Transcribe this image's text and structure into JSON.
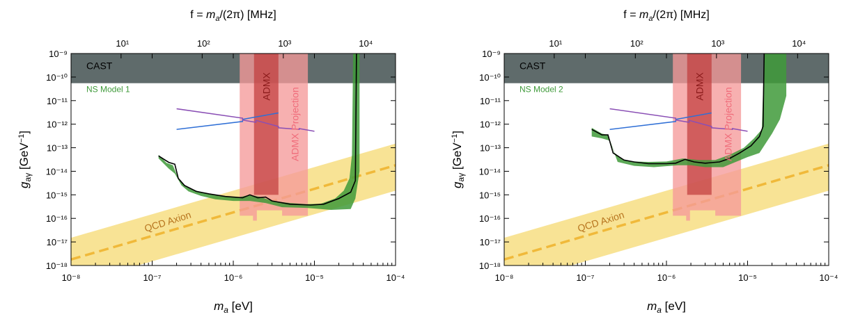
{
  "chart_data": [
    {
      "type": "line",
      "panel_label": "NS Model 1",
      "xscale": "log",
      "yscale": "log",
      "xlabel": "m",
      "xlabel_sub": "a",
      "xlabel_unit": " [eV]",
      "ylabel": "g",
      "ylabel_sub": "aγ",
      "ylabel_unit": " [GeV",
      "ylabel_exp": "−1",
      "ylabel_close": "]",
      "top_xlabel": "f = ",
      "top_xlabel_m": "m",
      "top_xlabel_sub": "a",
      "top_xlabel_rest": "/(2π) [MHz]",
      "xlim": [
        1e-08,
        0.0001
      ],
      "ylim": [
        1e-18,
        1e-09
      ],
      "xtick_exps": [
        -8,
        -7,
        -6,
        -5,
        -4
      ],
      "ytick_exps": [
        -18,
        -17,
        -16,
        -15,
        -14,
        -13,
        -12,
        -11,
        -10,
        -9
      ],
      "top_tick_exps": [
        1,
        2,
        3,
        4
      ],
      "tick_base": "10",
      "regions": {
        "cast": {
          "label": "CAST",
          "x": [
            1e-08,
            0.0001
          ],
          "y": [
            5.5e-11,
            1e-09
          ],
          "color": "#5f6b6b"
        },
        "admx": {
          "label": "ADMX",
          "x": [
            1.8e-06,
            3.6e-06
          ],
          "y": [
            1e-15,
            1e-09
          ],
          "color": "#c03a3a"
        },
        "admx_projection": {
          "label": "ADMX Projection",
          "polygon": [
            [
              1.2e-06,
              1e-09
            ],
            [
              8.3e-06,
              1e-09
            ],
            [
              8.3e-06,
              1.3e-16
            ],
            [
              4e-06,
              1.3e-16
            ],
            [
              4e-06,
              2.2e-16
            ],
            [
              1.95e-06,
              2.2e-16
            ],
            [
              1.95e-06,
              8e-17
            ],
            [
              1.75e-06,
              8e-17
            ],
            [
              1.75e-06,
              1.3e-16
            ],
            [
              1.2e-06,
              1.3e-16
            ]
          ],
          "color": "#f59a9a"
        },
        "qcd": {
          "label": "QCD Axion",
          "band_lower": [
            [
              1e-08,
              1.5e-19
            ],
            [
              0.0001,
              1.5e-15
            ]
          ],
          "band_upper": [
            [
              1e-08,
              1.5e-17
            ],
            [
              0.0001,
              1.5e-13
            ]
          ],
          "center": [
            [
              1e-08,
              1.8e-18
            ],
            [
              0.0001,
              1.8e-14
            ]
          ],
          "color": "#f7e08a",
          "line_color": "#f0b93a"
        }
      },
      "ns_band": [
        [
          1.2e-07,
          5e-14
        ],
        [
          1.5e-07,
          2.3e-14
        ],
        [
          1.8e-07,
          1.8e-14
        ],
        [
          2.1e-07,
          5e-15
        ],
        [
          2.6e-07,
          2.2e-15
        ],
        [
          3.5e-07,
          1.5e-15
        ],
        [
          5e-07,
          1.1e-15
        ],
        [
          8e-07,
          8.5e-16
        ],
        [
          1.2e-06,
          8e-16
        ],
        [
          1.6e-06,
          1e-15
        ],
        [
          2.2e-06,
          8e-16
        ],
        [
          3e-06,
          5.5e-16
        ],
        [
          5e-06,
          4.5e-16
        ],
        [
          8e-06,
          4e-16
        ],
        [
          1.2e-05,
          4.2e-16
        ],
        [
          1.8e-05,
          7e-16
        ],
        [
          2.3e-05,
          1.5e-15
        ],
        [
          2.7e-05,
          5e-15
        ],
        [
          2.9e-05,
          5e-14
        ],
        [
          3e-05,
          1e-09
        ],
        [
          3.6e-05,
          1e-09
        ],
        [
          3.6e-05,
          1e-14
        ],
        [
          3.2e-05,
          7e-16
        ],
        [
          2.8e-05,
          2.5e-16
        ],
        [
          1.6e-05,
          2.3e-16
        ],
        [
          8e-06,
          2.8e-16
        ],
        [
          4e-06,
          3e-16
        ],
        [
          2.5e-06,
          4.5e-16
        ],
        [
          1.6e-06,
          5.5e-16
        ],
        [
          1e-06,
          5.5e-16
        ],
        [
          6e-07,
          6.5e-16
        ],
        [
          4e-07,
          9e-16
        ],
        [
          2.8e-07,
          1.4e-15
        ],
        [
          2.3e-07,
          2.5e-15
        ],
        [
          1.9e-07,
          8e-15
        ],
        [
          1.6e-07,
          1.3e-14
        ],
        [
          1.2e-07,
          3.5e-14
        ]
      ],
      "ns_line": [
        [
          1.2e-07,
          4.5e-14
        ],
        [
          1.6e-07,
          2.4e-14
        ],
        [
          1.9e-07,
          2e-14
        ],
        [
          2.1e-07,
          5e-15
        ],
        [
          2.5e-07,
          2.5e-15
        ],
        [
          3.5e-07,
          1.4e-15
        ],
        [
          5e-07,
          1.1e-15
        ],
        [
          8e-07,
          8.5e-16
        ],
        [
          1.3e-06,
          7.5e-16
        ],
        [
          1.6e-06,
          1e-15
        ],
        [
          2e-06,
          7.5e-16
        ],
        [
          2.5e-06,
          8e-16
        ],
        [
          3e-06,
          5.5e-16
        ],
        [
          5e-06,
          4e-16
        ],
        [
          9e-06,
          3.7e-16
        ],
        [
          1.3e-05,
          4e-16
        ],
        [
          2e-05,
          7e-16
        ],
        [
          2.8e-05,
          1.3e-15
        ],
        [
          3.2e-05,
          4e-15
        ],
        [
          3.3e-05,
          1e-09
        ]
      ],
      "ns_color": "#3f9a3a",
      "blue_line": [
        [
          2e-07,
          6e-13
        ],
        [
          1.3e-06,
          1.3e-12
        ],
        [
          1.3e-06,
          1.6e-12
        ],
        [
          3.6e-06,
          3e-12
        ]
      ],
      "purple_line": [
        [
          2e-07,
          4.5e-12
        ],
        [
          1.3e-06,
          1.8e-12
        ],
        [
          1.3e-06,
          1.5e-12
        ],
        [
          1.9e-06,
          1.2e-12
        ],
        [
          1.9e-06,
          1.45e-12
        ],
        [
          3.6e-06,
          8e-13
        ],
        [
          3.6e-06,
          7e-13
        ],
        [
          6.5e-06,
          6e-13
        ],
        [
          6.5e-06,
          6.5e-13
        ],
        [
          1e-05,
          5e-13
        ]
      ]
    },
    {
      "type": "line",
      "panel_label": "NS Model 2",
      "xscale": "log",
      "yscale": "log",
      "xlabel": "m",
      "xlabel_sub": "a",
      "xlabel_unit": " [eV]",
      "ylabel": "g",
      "ylabel_sub": "aγ",
      "ylabel_unit": " [GeV",
      "ylabel_exp": "−1",
      "ylabel_close": "]",
      "top_xlabel": "f = ",
      "top_xlabel_m": "m",
      "top_xlabel_sub": "a",
      "top_xlabel_rest": "/(2π) [MHz]",
      "xlim": [
        1e-08,
        0.0001
      ],
      "ylim": [
        1e-18,
        1e-09
      ],
      "xtick_exps": [
        -8,
        -7,
        -6,
        -5,
        -4
      ],
      "ytick_exps": [
        -18,
        -17,
        -16,
        -15,
        -14,
        -13,
        -12,
        -11,
        -10,
        -9
      ],
      "top_tick_exps": [
        1,
        2,
        3,
        4
      ],
      "tick_base": "10",
      "regions": {
        "cast": {
          "label": "CAST",
          "x": [
            1e-08,
            0.0001
          ],
          "y": [
            5.5e-11,
            1e-09
          ],
          "color": "#5f6b6b"
        },
        "admx": {
          "label": "ADMX",
          "x": [
            1.8e-06,
            3.6e-06
          ],
          "y": [
            1e-15,
            1e-09
          ],
          "color": "#c03a3a"
        },
        "admx_projection": {
          "label": "ADMX Projection",
          "polygon": [
            [
              1.2e-06,
              1e-09
            ],
            [
              8.3e-06,
              1e-09
            ],
            [
              8.3e-06,
              1.3e-16
            ],
            [
              4e-06,
              1.3e-16
            ],
            [
              4e-06,
              2.2e-16
            ],
            [
              1.95e-06,
              2.2e-16
            ],
            [
              1.95e-06,
              8e-17
            ],
            [
              1.75e-06,
              8e-17
            ],
            [
              1.75e-06,
              1.3e-16
            ],
            [
              1.2e-06,
              1.3e-16
            ]
          ],
          "color": "#f59a9a"
        },
        "qcd": {
          "label": "QCD Axion",
          "band_lower": [
            [
              1e-08,
              1.5e-19
            ],
            [
              0.0001,
              1.5e-15
            ]
          ],
          "band_upper": [
            [
              1e-08,
              1.5e-17
            ],
            [
              0.0001,
              1.5e-13
            ]
          ],
          "center": [
            [
              1e-08,
              1.8e-18
            ],
            [
              0.0001,
              1.8e-14
            ]
          ],
          "color": "#f7e08a",
          "line_color": "#f0b93a"
        }
      },
      "ns_band": [
        [
          1.2e-07,
          7e-13
        ],
        [
          1.6e-07,
          4e-13
        ],
        [
          1.9e-07,
          3.5e-13
        ],
        [
          2.3e-07,
          6e-14
        ],
        [
          3e-07,
          3e-14
        ],
        [
          4e-07,
          2.6e-14
        ],
        [
          6e-07,
          2.5e-14
        ],
        [
          1e-06,
          2.6e-14
        ],
        [
          1.6e-06,
          3.5e-14
        ],
        [
          2.5e-06,
          3e-14
        ],
        [
          4e-06,
          3e-14
        ],
        [
          6e-06,
          5e-14
        ],
        [
          9e-06,
          1e-13
        ],
        [
          1.2e-05,
          2.5e-13
        ],
        [
          1.5e-05,
          6e-13
        ],
        [
          1.6e-05,
          1e-09
        ],
        [
          3e-05,
          1e-09
        ],
        [
          3e-05,
          1.6e-11
        ],
        [
          2.5e-05,
          1.6e-12
        ],
        [
          2e-05,
          4e-13
        ],
        [
          1.4e-05,
          6e-14
        ],
        [
          1e-05,
          4e-14
        ],
        [
          5e-06,
          1.5e-14
        ],
        [
          3e-06,
          1.5e-14
        ],
        [
          2e-06,
          1.8e-14
        ],
        [
          1.4e-06,
          1.8e-14
        ],
        [
          7e-07,
          1.5e-14
        ],
        [
          4e-07,
          1.7e-14
        ],
        [
          2.5e-07,
          2.5e-14
        ],
        [
          2e-07,
          2e-13
        ],
        [
          1.6e-07,
          2.5e-13
        ],
        [
          1.2e-07,
          3e-13
        ]
      ],
      "ns_line": [
        [
          1.2e-07,
          6e-13
        ],
        [
          1.6e-07,
          3.5e-13
        ],
        [
          1.9e-07,
          3.5e-13
        ],
        [
          2.2e-07,
          6e-14
        ],
        [
          3e-07,
          3e-14
        ],
        [
          4e-07,
          2.5e-14
        ],
        [
          6e-07,
          2.1e-14
        ],
        [
          1e-06,
          2.1e-14
        ],
        [
          1.3e-06,
          2.2e-14
        ],
        [
          1.7e-06,
          3.2e-14
        ],
        [
          2.2e-06,
          2.5e-14
        ],
        [
          3e-06,
          2.2e-14
        ],
        [
          4.5e-06,
          2.5e-14
        ],
        [
          6e-06,
          3.5e-14
        ],
        [
          8e-06,
          6e-14
        ],
        [
          1.1e-05,
          1.2e-13
        ],
        [
          1.4e-05,
          3e-13
        ],
        [
          1.55e-05,
          8e-13
        ],
        [
          1.6e-05,
          1e-09
        ]
      ],
      "ns_color": "#3f9a3a",
      "blue_line": [
        [
          2e-07,
          6e-13
        ],
        [
          1.3e-06,
          1.3e-12
        ],
        [
          1.3e-06,
          1.6e-12
        ],
        [
          3.6e-06,
          3e-12
        ]
      ],
      "purple_line": [
        [
          2e-07,
          4.5e-12
        ],
        [
          1.3e-06,
          1.8e-12
        ],
        [
          1.3e-06,
          1.5e-12
        ],
        [
          1.9e-06,
          1.2e-12
        ],
        [
          1.9e-06,
          1.45e-12
        ],
        [
          3.6e-06,
          8e-13
        ],
        [
          3.6e-06,
          7e-13
        ],
        [
          6.5e-06,
          6e-13
        ],
        [
          6.5e-06,
          6.5e-13
        ],
        [
          1e-05,
          5e-13
        ]
      ]
    }
  ]
}
